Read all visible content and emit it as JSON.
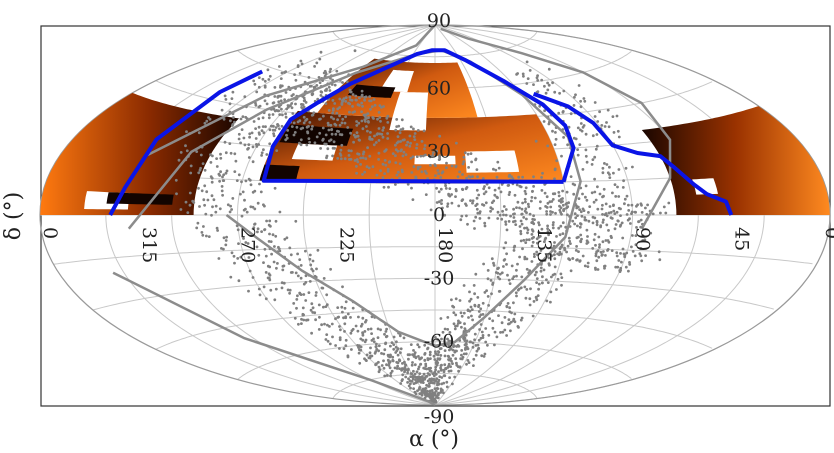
{
  "chart_data": {
    "type": "scatter",
    "projection": "aitoff",
    "title": "",
    "xlabel": "α (°)",
    "ylabel": "δ (°)",
    "ra_tick_labels": [
      "0",
      "315",
      "270",
      "225",
      "180",
      "135",
      "90",
      "45",
      "0"
    ],
    "ra_tick_values": [
      0,
      315,
      270,
      225,
      180,
      135,
      90,
      45,
      0
    ],
    "dec_tick_labels": [
      "90",
      "60",
      "30",
      "0",
      "-30",
      "-60",
      "-90"
    ],
    "dec_tick_values": [
      90,
      60,
      30,
      0,
      -30,
      -60,
      -90
    ],
    "xlim": [
      0,
      360
    ],
    "ylim": [
      -90,
      90
    ],
    "grid": true,
    "legend": "none",
    "colors": {
      "footprint_outline": "#0a14e6",
      "scatter_band": "#808080",
      "galactic_line": "#8c8c8c",
      "density_high": "#ff7a10",
      "density_low": "#1a0600",
      "grid": "#c8c8c8"
    },
    "series": [
      {
        "kind": "footprint-outline",
        "segments": [
          [
            [
              120,
              15
            ],
            [
              260,
              15
            ],
            [
              262,
              30
            ],
            [
              262,
              42
            ],
            [
              255,
              50
            ],
            [
              245,
              60
            ],
            [
              225,
              70
            ],
            [
              205,
              76
            ],
            [
              185,
              78
            ],
            [
              165,
              78
            ],
            [
              145,
              73
            ],
            [
              125,
              62
            ],
            [
              112,
              50
            ],
            [
              108,
              40
            ],
            [
              110,
              30
            ],
            [
              120,
              15
            ]
          ],
          [
            [
              328,
              0
            ],
            [
              323,
              10
            ],
            [
              321,
              28
            ],
            [
              318,
              48
            ],
            [
              316,
              58
            ]
          ],
          [
            [
              45,
              0
            ],
            [
              47,
              5
            ],
            [
              55,
              8
            ],
            [
              60,
              12
            ],
            [
              66,
              19
            ],
            [
              70,
              24
            ],
            [
              80,
              26
            ],
            [
              90,
              30
            ],
            [
              92,
              40
            ],
            [
              98,
              48
            ],
            [
              112,
              55
            ]
          ]
        ]
      },
      {
        "kind": "galactic-plane-lines",
        "segments": [
          [
            [
              320,
              -5
            ],
            [
              300,
              25
            ],
            [
              280,
              45
            ],
            [
              250,
              65
            ],
            [
              205,
              76
            ],
            [
              170,
              78
            ],
            [
              140,
              72
            ],
            [
              120,
              55
            ],
            [
              110,
              35
            ],
            [
              112,
              15
            ],
            [
              120,
              -10
            ],
            [
              135,
              -30
            ],
            [
              150,
              -48
            ],
            [
              165,
              -60
            ],
            [
              180,
              -62
            ],
            [
              205,
              -55
            ],
            [
              225,
              -40
            ],
            [
              245,
              -25
            ],
            [
              262,
              -10
            ],
            [
              275,
              0
            ]
          ],
          [
            [
              320,
              22
            ],
            [
              290,
              50
            ],
            [
              250,
              68
            ],
            [
              215,
              80
            ],
            [
              180,
              90
            ]
          ],
          [
            [
              335,
              -20
            ],
            [
              305,
              -50
            ],
            [
              270,
              -75
            ],
            [
              240,
              -88
            ],
            [
              180,
              -90
            ]
          ],
          [
            [
              85,
              -5
            ],
            [
              70,
              15
            ],
            [
              60,
              30
            ],
            [
              55,
              45
            ],
            [
              60,
              60
            ],
            [
              75,
              72
            ],
            [
              100,
              82
            ],
            [
              130,
              88
            ]
          ]
        ]
      },
      {
        "kind": "density-map",
        "regions": [
          {
            "ra": [
              120,
              265
            ],
            "dec": [
              15,
              45
            ]
          },
          {
            "ra": [
              150,
              250
            ],
            "dec": [
              45,
              70
            ]
          },
          {
            "ra": [
              290,
              360
            ],
            "dec": [
              0,
              40
            ]
          },
          {
            "ra": [
              0,
              70
            ],
            "dec": [
              0,
              35
            ]
          }
        ]
      }
    ]
  }
}
